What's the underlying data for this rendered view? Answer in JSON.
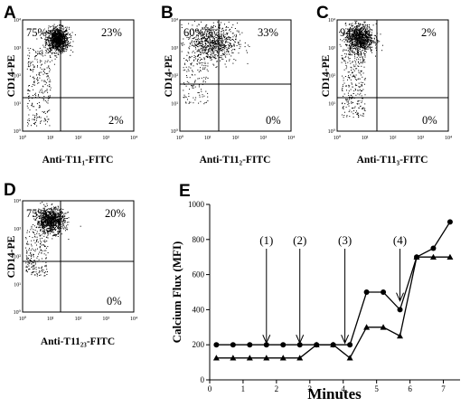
{
  "flow_panels": [
    {
      "letter": "A",
      "ylabel": "CD14-PE",
      "xlabel": "Anti-T11₁-FITC",
      "quadrants": {
        "upper_left": "75%",
        "upper_right": "23%",
        "lower_right": "2%",
        "lower_left": ""
      },
      "cluster": {
        "mx": 1.25,
        "my": 3.3,
        "sx": 0.2,
        "sy": 0.22,
        "n": 1100
      },
      "tail": {
        "n": 260,
        "x_from": 0.15,
        "x_to": 1.0,
        "y_from": 0.2,
        "y_to": 3.0
      }
    },
    {
      "letter": "B",
      "ylabel": "CD14-PE",
      "xlabel": "Anti-T11₂-FITC",
      "quadrants": {
        "upper_left": "60%",
        "upper_right": "33%",
        "lower_right": "0%",
        "lower_left": ""
      },
      "cluster": {
        "mx": 1.15,
        "my": 3.2,
        "sx": 0.45,
        "sy": 0.35,
        "n": 800
      },
      "tail": {
        "n": 120,
        "x_from": 0.1,
        "x_to": 1.0,
        "y_from": 1.0,
        "y_to": 2.7
      }
    },
    {
      "letter": "C",
      "ylabel": "CD14-PE",
      "xlabel": "Anti-T11₃-FITC",
      "quadrants": {
        "upper_left": "94%",
        "upper_right": "2%",
        "lower_right": "0%",
        "lower_left": ""
      },
      "cluster": {
        "mx": 0.8,
        "my": 3.35,
        "sx": 0.25,
        "sy": 0.25,
        "n": 1000
      },
      "tail": {
        "n": 280,
        "x_from": 0.15,
        "x_to": 1.0,
        "y_from": 0.5,
        "y_to": 3.0
      }
    },
    {
      "letter": "D",
      "ylabel": "CD14-PE",
      "xlabel": "Anti-T11₂₃-FITC",
      "quadrants": {
        "upper_left": "75%",
        "upper_right": "20%",
        "lower_right": "0%",
        "lower_left": ""
      },
      "cluster": {
        "mx": 1.0,
        "my": 3.3,
        "sx": 0.25,
        "sy": 0.22,
        "n": 1000
      },
      "tail": {
        "n": 200,
        "x_from": 0.1,
        "x_to": 0.9,
        "y_from": 1.3,
        "y_to": 3.0
      }
    }
  ],
  "axis_ticks": {
    "x": [
      "10⁰",
      "10¹",
      "10²",
      "10³",
      "10⁴"
    ],
    "y": [
      "10⁰",
      "10¹",
      "10²",
      "10³",
      "10⁴"
    ]
  },
  "chart_data": {
    "type": "line",
    "panel_letter": "E",
    "xlabel": "Minutes",
    "ylabel": "Calcium Flux (MFI)",
    "xlim": [
      0,
      7.5
    ],
    "ylim": [
      0,
      1000
    ],
    "x_ticks": [
      0,
      1,
      2,
      3,
      4,
      5,
      6,
      7
    ],
    "y_ticks": [
      0,
      200,
      400,
      600,
      800,
      1000
    ],
    "series": [
      {
        "marker": "circle",
        "x": [
          0.2,
          0.7,
          1.2,
          1.7,
          2.2,
          2.7,
          3.2,
          3.7,
          4.2,
          4.7,
          5.2,
          5.7,
          6.2,
          6.7,
          7.2
        ],
        "y": [
          200,
          200,
          200,
          200,
          200,
          200,
          200,
          200,
          200,
          500,
          500,
          400,
          700,
          750,
          900
        ]
      },
      {
        "marker": "triangle",
        "x": [
          0.2,
          0.7,
          1.2,
          1.7,
          2.2,
          2.7,
          3.2,
          3.7,
          4.2,
          4.7,
          5.2,
          5.7,
          6.2,
          6.7,
          7.2
        ],
        "y": [
          125,
          125,
          125,
          125,
          125,
          125,
          200,
          200,
          125,
          300,
          300,
          250,
          700,
          700,
          700
        ]
      }
    ],
    "annotations": [
      {
        "label": "(1)",
        "x": 1.7
      },
      {
        "label": "(2)",
        "x": 2.7
      },
      {
        "label": "(3)",
        "x": 4.05
      },
      {
        "label": "(4)",
        "x": 5.7
      }
    ]
  }
}
